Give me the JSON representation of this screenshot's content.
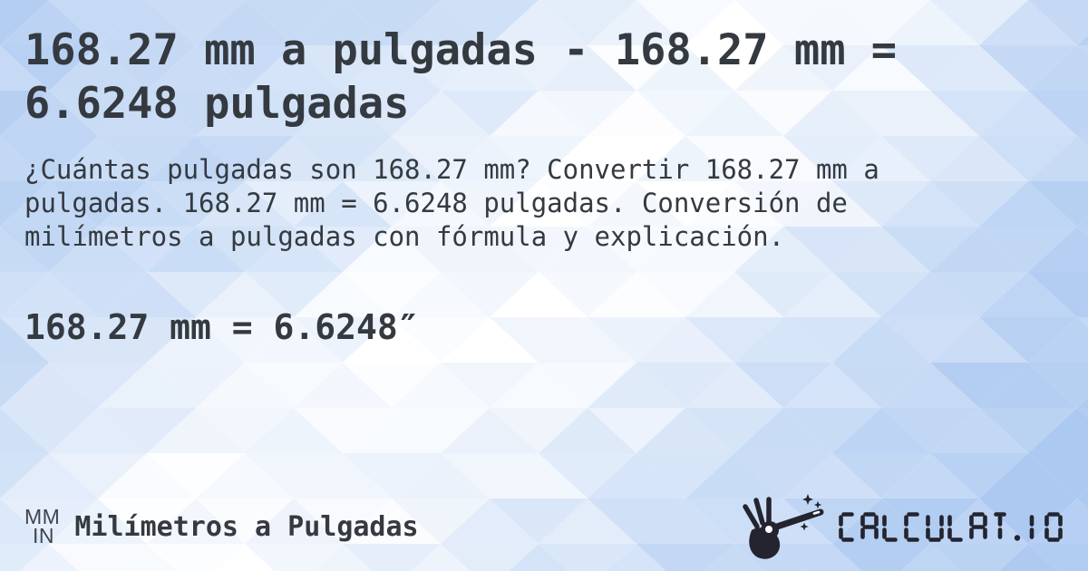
{
  "card": {
    "title": "168.27 mm a pulgadas - 168.27 mm = 6.6248 pulgadas",
    "description": "¿Cuántas pulgadas son 168.27 mm? Convertir 168.27 mm a pulgadas. 168.27 mm = 6.6248 pulgadas. Conversión de milímetros a pulgadas con fórmula y explicación.",
    "result": "168.27 mm = 6.6248″"
  },
  "footer": {
    "unit_badge": {
      "top": "MM",
      "bottom": "IN"
    },
    "category": "Milímetros a Pulgadas",
    "logo": {
      "text": "CALCULAT.IO",
      "icon": "magic-wand-hand-icon"
    }
  },
  "colors": {
    "text": "#343a40",
    "badge_text": "#3f454e",
    "logo": "#23242f",
    "background_deep_blue": "#a3c3ef",
    "background_light": "#ffffff"
  }
}
